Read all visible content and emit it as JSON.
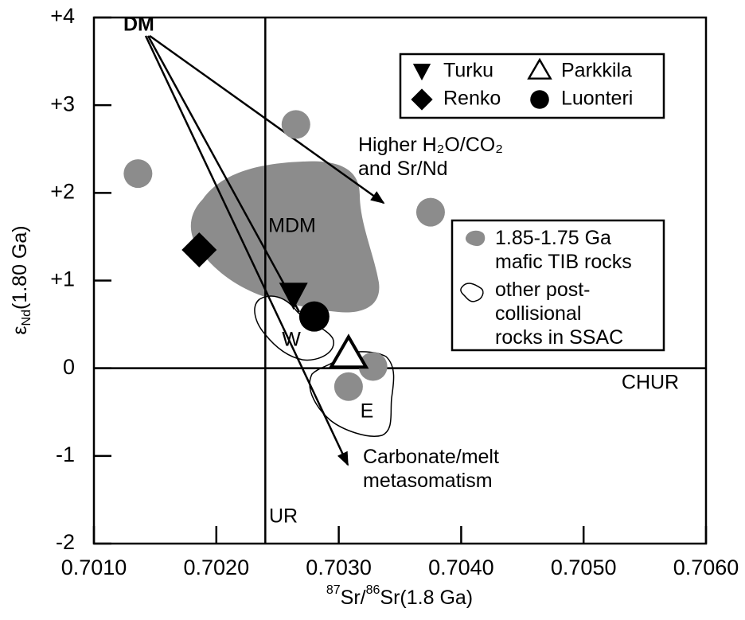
{
  "chart_data": {
    "type": "scatter",
    "xlim": [
      0.701,
      0.706
    ],
    "ylim": [
      -2,
      4
    ],
    "xticks": [
      {
        "value": 0.701,
        "label": "0.7010"
      },
      {
        "value": 0.702,
        "label": "0.7020"
      },
      {
        "value": 0.703,
        "label": "0.7030"
      },
      {
        "value": 0.704,
        "label": "0.7040"
      },
      {
        "value": 0.705,
        "label": "0.7050"
      },
      {
        "value": 0.706,
        "label": "0.7060"
      }
    ],
    "yticks": [
      -2,
      -1,
      0,
      {
        "value": 1,
        "label": "+1"
      },
      {
        "value": 2,
        "label": "+2"
      },
      {
        "value": 3,
        "label": "+3"
      },
      {
        "value": 4,
        "label": "+4"
      }
    ],
    "x_label": {
      "parts": [
        "87",
        "Sr/",
        "86",
        "Sr(1.8 Ga)"
      ],
      "raised": [
        true,
        false,
        true,
        false
      ]
    },
    "y_label": {
      "parts": [
        "ε",
        "Nd",
        "(1.80 Ga)"
      ],
      "lowered": [
        false,
        true,
        false
      ]
    },
    "ref_lines": [
      {
        "label": "UR",
        "x": 0.7024
      },
      {
        "label": "CHUR",
        "y": 0
      }
    ],
    "series": [
      {
        "name": "Turku",
        "marker": "triangle-down",
        "color": "#000000",
        "x": [
          0.70263
        ],
        "y": [
          0.83
        ]
      },
      {
        "name": "Parkkila",
        "marker": "triangle-open",
        "color": "#000000",
        "x": [
          0.70308
        ],
        "y": [
          0.14
        ]
      },
      {
        "name": "Renko",
        "marker": "diamond",
        "color": "#000000",
        "x": [
          0.70186
        ],
        "y": [
          1.35
        ]
      },
      {
        "name": "Luonteri",
        "marker": "circle",
        "color": "#000000",
        "x": [
          0.7028
        ],
        "y": [
          0.59
        ]
      },
      {
        "name": "1.85-1.75 Ga\nmafic TIB rocks",
        "marker": "blob",
        "color": "#8c8c8c",
        "x": [
          0.70136,
          0.70265,
          0.70375,
          0.70328,
          0.70308
        ],
        "y": [
          2.22,
          2.78,
          1.78,
          0.02,
          -0.21
        ]
      }
    ],
    "outline_legend": "other post-\ncollisional\nrocks in SSAC",
    "annotations": [
      "DM",
      "Higher H₂O/CO₂\nand Sr/Nd",
      "MDM",
      "W",
      "E",
      "Carbonate/melt\nmetasomatism"
    ]
  }
}
